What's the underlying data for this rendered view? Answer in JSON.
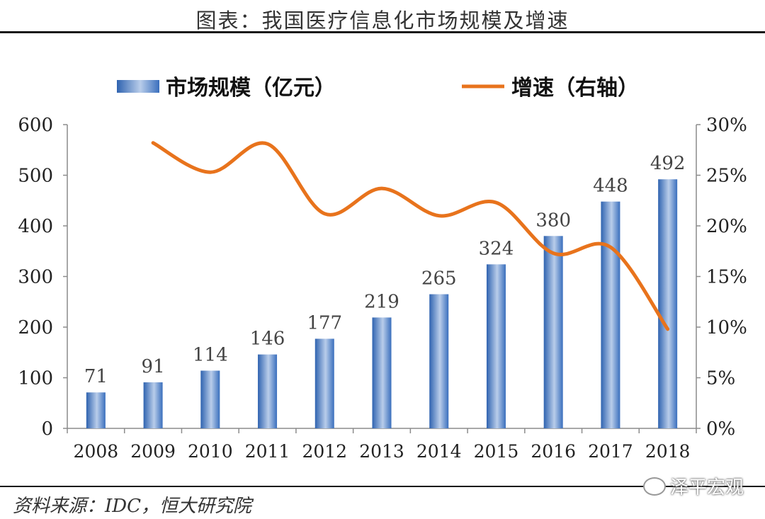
{
  "header": {
    "title": "图表：我国医疗信息化市场规模及增速"
  },
  "footer": {
    "source": "资料来源：IDC，恒大研究院",
    "watermark": "泽平宏观",
    "watermark_icon": "wechat-icon"
  },
  "colors": {
    "bar": "#3f77c4",
    "bar_light": "#b8cdec",
    "line": "#e8731c",
    "axis": "#8c8c8c"
  },
  "chart_data": {
    "type": "bar",
    "categories": [
      "2008",
      "2009",
      "2010",
      "2011",
      "2012",
      "2013",
      "2014",
      "2015",
      "2016",
      "2017",
      "2018"
    ],
    "series": [
      {
        "name": "市场规模（亿元）",
        "type": "bar",
        "axis": "left",
        "values": [
          71,
          91,
          114,
          146,
          177,
          219,
          265,
          324,
          380,
          448,
          492
        ]
      },
      {
        "name": "增速（右轴）",
        "type": "line",
        "axis": "right",
        "values": [
          null,
          28.2,
          25.3,
          28.1,
          21.2,
          23.7,
          21.0,
          22.3,
          17.3,
          17.9,
          9.8
        ]
      }
    ],
    "y_left": {
      "min": 0,
      "max": 600,
      "ticks": [
        "0",
        "100",
        "200",
        "300",
        "400",
        "500",
        "600"
      ]
    },
    "y_right": {
      "min": 0,
      "max": 30,
      "ticks": [
        "0%",
        "5%",
        "10%",
        "15%",
        "20%",
        "25%",
        "30%"
      ]
    },
    "data_labels": [
      "71",
      "91",
      "114",
      "146",
      "177",
      "219",
      "265",
      "324",
      "380",
      "448",
      "492"
    ],
    "legend_position": "top",
    "grid": false
  }
}
